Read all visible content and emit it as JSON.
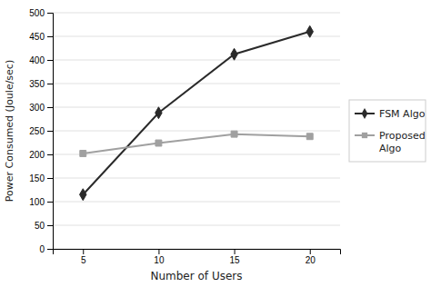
{
  "chart_data": {
    "type": "line",
    "x": [
      5,
      10,
      15,
      20
    ],
    "series": [
      {
        "name": "FSM Algo",
        "color": "#2a2a2a",
        "marker": "diamond",
        "values": [
          115,
          288,
          412,
          460
        ]
      },
      {
        "name": "Proposed\nAlgo",
        "color": "#a0a0a0",
        "marker": "square",
        "values": [
          202,
          224,
          243,
          238
        ]
      }
    ],
    "xlabel": "Number of Users",
    "ylabel": "Power Consumed (Joule/sec)",
    "xlim": [
      3,
      22
    ],
    "xticks": [
      5,
      10,
      15,
      20
    ],
    "ylim": [
      0,
      500
    ],
    "yticks": [
      0,
      50,
      100,
      150,
      200,
      250,
      300,
      350,
      400,
      450,
      500
    ],
    "grid": "y",
    "legend": "right"
  }
}
